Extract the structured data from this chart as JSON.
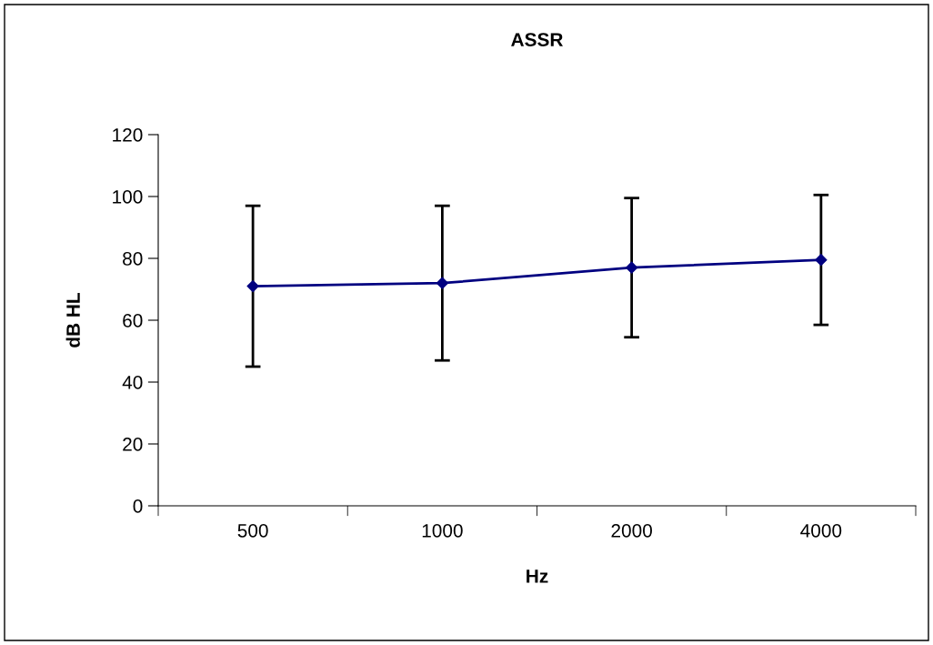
{
  "chart_data": {
    "type": "line",
    "title": "ASSR",
    "xlabel": "Hz",
    "ylabel": "dB HL",
    "categories": [
      "500",
      "1000",
      "2000",
      "4000"
    ],
    "series": [
      {
        "color": "#000080",
        "values": [
          71,
          72,
          77,
          79.5
        ],
        "errors": [
          [
            45,
            97
          ],
          [
            47,
            97
          ],
          [
            54.5,
            99.5
          ],
          [
            58.5,
            100.5
          ]
        ]
      }
    ],
    "ylim": [
      0,
      120
    ],
    "yticks": [
      0,
      20,
      40,
      60,
      80,
      100,
      120
    ],
    "grid": false,
    "legend": false,
    "marker": "diamond",
    "line_style": "solid"
  }
}
